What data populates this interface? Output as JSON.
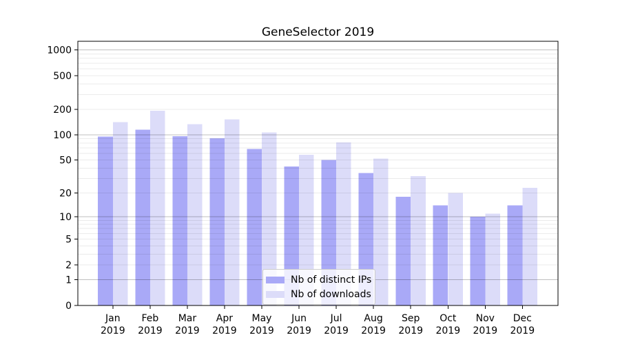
{
  "title": "GeneSelector 2019",
  "chart_data": {
    "type": "bar",
    "title": "GeneSelector 2019",
    "categories": [
      "Jan",
      "Feb",
      "Mar",
      "Apr",
      "May",
      "Jun",
      "Jul",
      "Aug",
      "Sep",
      "Oct",
      "Nov",
      "Dec"
    ],
    "category_year": "2019",
    "series": [
      {
        "name": "Nb of distinct IPs",
        "color": "#a9a9f7",
        "values": [
          95,
          115,
          96,
          91,
          68,
          42,
          50,
          35,
          18,
          14,
          10,
          14
        ]
      },
      {
        "name": "Nb of downloads",
        "color": "#dcdcf9",
        "values": [
          142,
          192,
          134,
          152,
          107,
          58,
          81,
          52,
          32,
          20,
          11,
          23
        ]
      }
    ],
    "y_ticks": [
      0,
      1,
      2,
      5,
      10,
      20,
      50,
      100,
      200,
      500,
      1000
    ],
    "y_scale": "log10(1+x)",
    "ylim": [
      0,
      1267
    ],
    "xlabel": "",
    "ylabel": "",
    "grid": "horizontal major+minor",
    "legend_position": "lower center inside plot"
  },
  "colors": {
    "major_grid": "rgba(0,0,0,0.25)",
    "minor_grid": "rgba(0,0,0,0.08)",
    "axis": "#000000",
    "text": "#000000"
  }
}
